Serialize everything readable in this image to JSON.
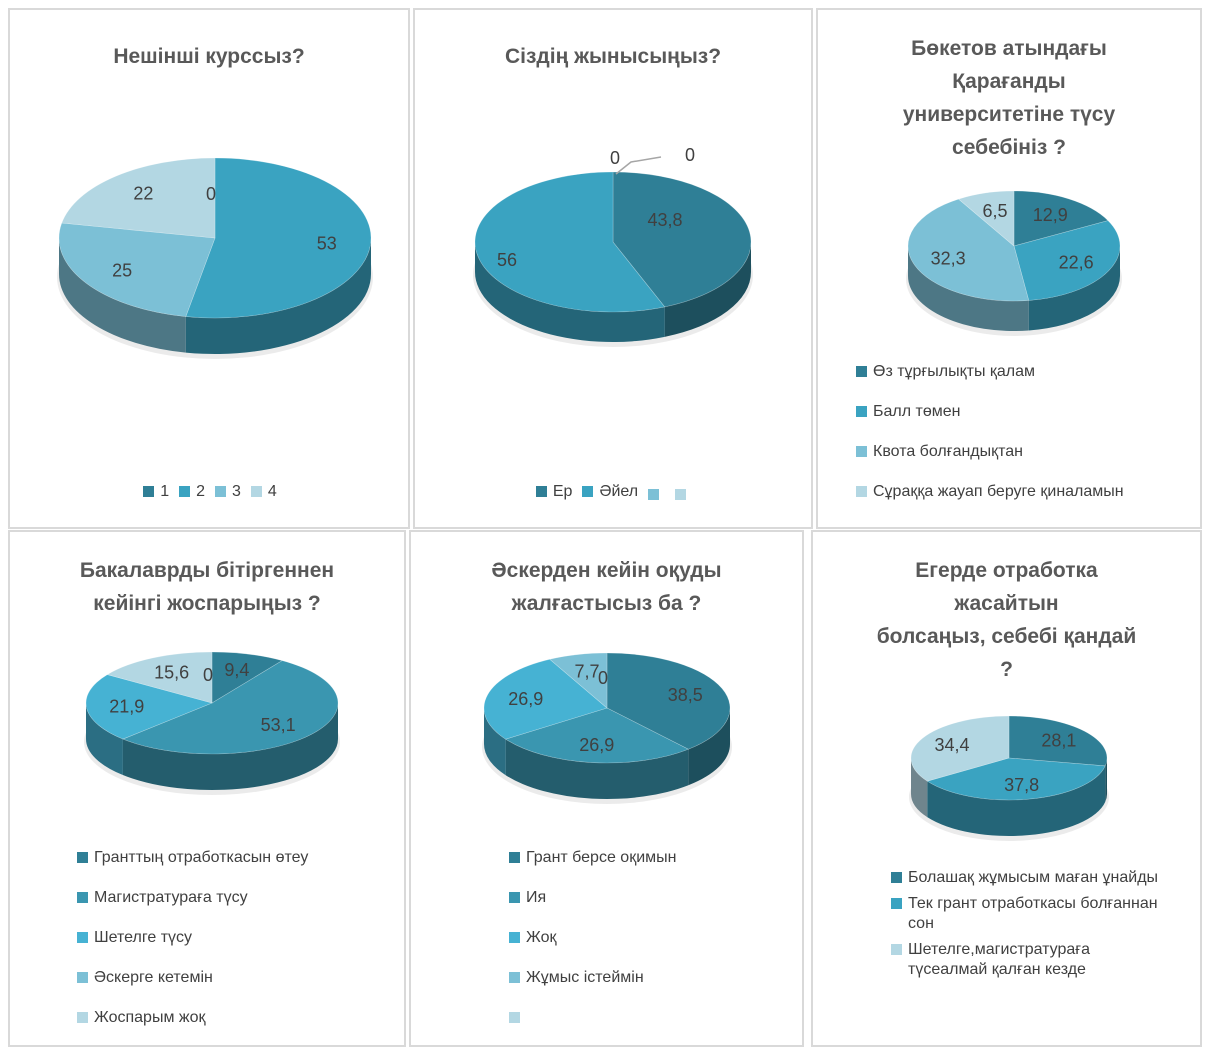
{
  "colors": {
    "c1": "#2f7f96",
    "c2": "#3aa3c1",
    "c3": "#46b2d3",
    "c4": "#7cc0d6",
    "c5": "#b3d7e3"
  },
  "charts": [
    {
      "title": "Нешінші курссыз?",
      "legend": [
        "1",
        "2",
        "3",
        "4"
      ],
      "chart_data": {
        "type": "pie",
        "categories": [
          "1",
          "2",
          "3",
          "4"
        ],
        "values": [
          0,
          53,
          25,
          22
        ],
        "labels": [
          "0",
          "53",
          "25",
          "22"
        ],
        "colors": [
          "#2f7f96",
          "#3aa3c1",
          "#7cc0d6",
          "#b3d7e3"
        ]
      }
    },
    {
      "title": "Сіздің жынысыңыз?",
      "legend": [
        "Ер",
        "Әйел",
        "",
        ""
      ],
      "chart_data": {
        "type": "pie",
        "categories": [
          "Ер",
          "Әйел",
          "",
          ""
        ],
        "values": [
          43.8,
          56,
          0,
          0
        ],
        "labels": [
          "43,8",
          "56",
          "0",
          "0"
        ],
        "colors": [
          "#2f7f96",
          "#3aa3c1",
          "#7cc0d6",
          "#b3d7e3"
        ]
      }
    },
    {
      "title": "Бөкетов атындағы\nҚарағанды\nуниверситетіне түсу\nсебебініз ?",
      "legend": [
        "Өз тұрғылықты қалам",
        "Балл төмен",
        "Квота болғандықтан",
        "Сұраққа жауап беруге қиналамын"
      ],
      "chart_data": {
        "type": "pie",
        "categories": [
          "Өз тұрғылықты қалам",
          "Балл төмен",
          "Квота болғандықтан",
          "Сұраққа жауап беруге қиналамын"
        ],
        "values": [
          12.9,
          22.6,
          32.3,
          6.5
        ],
        "labels": [
          "12,9",
          "22,6",
          "32,3",
          "6,5"
        ],
        "colors": [
          "#2f7f96",
          "#3aa3c1",
          "#7cc0d6",
          "#b3d7e3"
        ]
      }
    },
    {
      "title": "Бакалаврды бітіргеннен\nкейінгі жоспарыңыз ?",
      "legend": [
        "Гранттың отработкасын өтеу",
        "Магистратураға түсу",
        "Шетелге түсу",
        "Әскерге кетемін",
        "Жоспарым жоқ"
      ],
      "chart_data": {
        "type": "pie",
        "categories": [
          "Гранттың отработкасын өтеу",
          "Магистратураға түсу",
          "Шетелге түсу",
          "Әскерге кетемін",
          "Жоспарым жоқ"
        ],
        "values": [
          9.4,
          53.1,
          21.9,
          0,
          15.6
        ],
        "labels": [
          "9,4",
          "53,1",
          "21,9",
          "0",
          "15,6"
        ],
        "colors": [
          "#2f7f96",
          "#3a96b0",
          "#46b2d3",
          "#7cc0d6",
          "#b3d7e3"
        ]
      }
    },
    {
      "title": "Әскерден кейін оқуды\nжалғастысыз ба ?",
      "legend": [
        "Грант берсе оқимын",
        "Ия",
        "Жоқ",
        "Жұмыс істеймін",
        ""
      ],
      "chart_data": {
        "type": "pie",
        "categories": [
          "Грант берсе оқимын",
          "Ия",
          "Жоқ",
          "Жұмыс істеймін",
          ""
        ],
        "values": [
          38.5,
          26.9,
          26.9,
          7.7,
          0
        ],
        "labels": [
          "38,5",
          "26,9",
          "26,9",
          "7,7",
          "0"
        ],
        "colors": [
          "#2f7f96",
          "#3a96b0",
          "#46b2d3",
          "#7cc0d6",
          "#b3d7e3"
        ]
      }
    },
    {
      "title": "Егерде отработка\nжасайтын\nболсаңыз, себебі қандай\n?",
      "legend": [
        "Болашақ жұмысым маған ұнайды",
        "Тек грант отработкасы болғаннан сон",
        "Шетелге,магистратураға түсеалмай қалған кезде"
      ],
      "chart_data": {
        "type": "pie",
        "categories": [
          "Болашақ жұмысым маған ұнайды",
          "Тек грант отработкасы болғаннан сон",
          "Шетелге,магистратураға түсеалмай қалған кезде"
        ],
        "values": [
          28.1,
          37.8,
          34.4
        ],
        "labels": [
          "28,1",
          "37,8",
          "34,4"
        ],
        "colors": [
          "#2f7f96",
          "#3aa3c1",
          "#b3d7e3"
        ]
      }
    }
  ]
}
